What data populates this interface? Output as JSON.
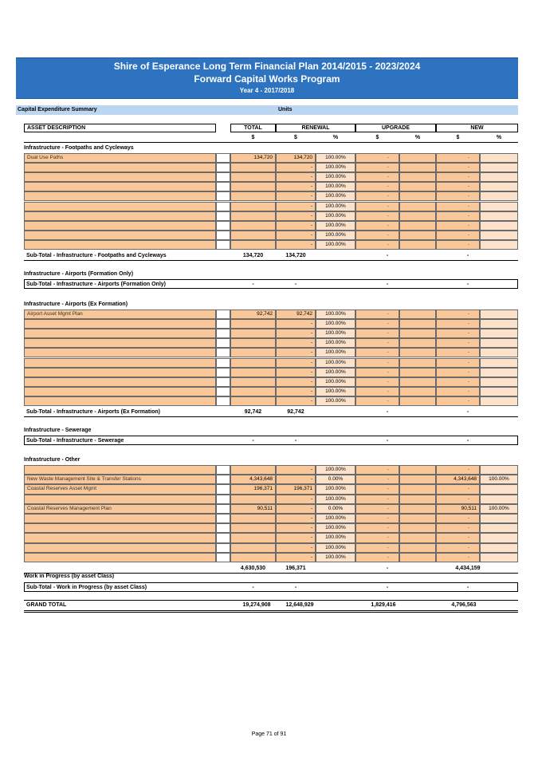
{
  "banner": {
    "title": "Shire of Esperance Long Term Financial Plan 2014/2015 - 2023/2024",
    "subtitle": "Forward Capital Works Program",
    "year": "Year 4 - 2017/2018"
  },
  "summary_bar": {
    "label": "Capital Expenditure Summary",
    "units": "Units"
  },
  "header": {
    "asset_description": "ASSET DESCRIPTION",
    "total": "TOTAL",
    "renewal": "RENEWAL",
    "upgrade": "UPGRADE",
    "new": "NEW",
    "dollar": "$",
    "percent": "%"
  },
  "sections": {
    "footpaths": {
      "title": "Infrastructure - Footpaths and Cycleways",
      "rows": [
        {
          "desc": "Dual Use Paths",
          "total": "134,720",
          "renewal": "134,720",
          "pct": "100.00%",
          "upgrade": "-",
          "new": "-",
          "new_pct": ""
        },
        {
          "desc": "",
          "total": "",
          "renewal": "-",
          "pct": "100.00%",
          "upgrade": "-",
          "new": "-",
          "new_pct": ""
        },
        {
          "desc": "",
          "total": "",
          "renewal": "-",
          "pct": "100.00%",
          "upgrade": "-",
          "new": "-",
          "new_pct": ""
        },
        {
          "desc": "",
          "total": "",
          "renewal": "-",
          "pct": "100.00%",
          "upgrade": "-",
          "new": "-",
          "new_pct": ""
        },
        {
          "desc": "",
          "total": "",
          "renewal": "-",
          "pct": "100.00%",
          "upgrade": "-",
          "new": "-",
          "new_pct": ""
        },
        {
          "desc": "",
          "total": "",
          "renewal": "-",
          "pct": "100.00%",
          "upgrade": "-",
          "new": "-",
          "new_pct": ""
        },
        {
          "desc": "",
          "total": "",
          "renewal": "-",
          "pct": "100.00%",
          "upgrade": "-",
          "new": "-",
          "new_pct": ""
        },
        {
          "desc": "",
          "total": "",
          "renewal": "-",
          "pct": "100.00%",
          "upgrade": "-",
          "new": "-",
          "new_pct": ""
        },
        {
          "desc": "",
          "total": "",
          "renewal": "-",
          "pct": "100.00%",
          "upgrade": "-",
          "new": "-",
          "new_pct": ""
        },
        {
          "desc": "",
          "total": "",
          "renewal": "-",
          "pct": "100.00%",
          "upgrade": "-",
          "new": "-",
          "new_pct": ""
        }
      ],
      "subtotal": {
        "label": "Sub-Total - Infrastructure - Footpaths and Cycleways",
        "total": "134,720",
        "renewal": "134,720",
        "upgrade": "-",
        "new": "-"
      }
    },
    "airports_formation": {
      "title": "Infrastructure - Airports (Formation Only)",
      "subtotal": {
        "label": "Sub-Total - Infrastructure - Airports (Formation Only)",
        "total": "-",
        "renewal": "-",
        "upgrade": "-",
        "new": "-"
      }
    },
    "airports_ex": {
      "title": "Infrastructure - Airports (Ex Formation)",
      "rows": [
        {
          "desc": "Airport Asset Mgmt Plan",
          "total": "92,742",
          "renewal": "92,742",
          "pct": "100.00%",
          "upgrade": "-",
          "new": "-",
          "new_pct": ""
        },
        {
          "desc": "",
          "total": "",
          "renewal": "-",
          "pct": "100.00%",
          "upgrade": "-",
          "new": "-",
          "new_pct": ""
        },
        {
          "desc": "",
          "total": "",
          "renewal": "-",
          "pct": "100.00%",
          "upgrade": "-",
          "new": "-",
          "new_pct": ""
        },
        {
          "desc": "",
          "total": "",
          "renewal": "-",
          "pct": "100.00%",
          "upgrade": "-",
          "new": "-",
          "new_pct": ""
        },
        {
          "desc": "",
          "total": "",
          "renewal": "-",
          "pct": "100.00%",
          "upgrade": "-",
          "new": "-",
          "new_pct": ""
        },
        {
          "desc": "",
          "total": "",
          "renewal": "-",
          "pct": "100.00%",
          "upgrade": "-",
          "new": "-",
          "new_pct": ""
        },
        {
          "desc": "",
          "total": "",
          "renewal": "-",
          "pct": "100.00%",
          "upgrade": "-",
          "new": "-",
          "new_pct": ""
        },
        {
          "desc": "",
          "total": "",
          "renewal": "-",
          "pct": "100.00%",
          "upgrade": "-",
          "new": "-",
          "new_pct": ""
        },
        {
          "desc": "",
          "total": "",
          "renewal": "-",
          "pct": "100.00%",
          "upgrade": "-",
          "new": "-",
          "new_pct": ""
        },
        {
          "desc": "",
          "total": "",
          "renewal": "-",
          "pct": "100.00%",
          "upgrade": "-",
          "new": "-",
          "new_pct": ""
        }
      ],
      "subtotal": {
        "label": "Sub-Total - Infrastructure - Airports (Ex Formation)",
        "total": "92,742",
        "renewal": "92,742",
        "upgrade": "-",
        "new": "-"
      }
    },
    "sewerage": {
      "title": "Infrastructure - Sewerage",
      "subtotal": {
        "label": "Sub-Total - Infrastructure - Sewerage",
        "total": "-",
        "renewal": "-",
        "upgrade": "-",
        "new": "-"
      }
    },
    "other": {
      "title": "Infrastructure - Other",
      "rows": [
        {
          "desc": "",
          "total": "",
          "renewal": "-",
          "pct": "100.00%",
          "upgrade": "-",
          "new": "-",
          "new_pct": ""
        },
        {
          "desc": "New Waste Management Site & Transfer Stations",
          "total": "4,343,648",
          "renewal": "-",
          "pct": "0.00%",
          "upgrade": "-",
          "new": "4,343,648",
          "new_pct": "100.00%"
        },
        {
          "desc": "Coastal Reserves Asset Mgmt",
          "total": "196,371",
          "renewal": "196,371",
          "pct": "100.00%",
          "upgrade": "-",
          "new": "-",
          "new_pct": ""
        },
        {
          "desc": "",
          "total": "",
          "renewal": "-",
          "pct": "100.00%",
          "upgrade": "-",
          "new": "-",
          "new_pct": ""
        },
        {
          "desc": "Coastal Reserves Management Plan",
          "total": "90,511",
          "renewal": "-",
          "pct": "0.00%",
          "upgrade": "-",
          "new": "90,511",
          "new_pct": "100.00%"
        },
        {
          "desc": "",
          "total": "",
          "renewal": "-",
          "pct": "100.00%",
          "upgrade": "-",
          "new": "-",
          "new_pct": ""
        },
        {
          "desc": "",
          "total": "",
          "renewal": "-",
          "pct": "100.00%",
          "upgrade": "-",
          "new": "-",
          "new_pct": ""
        },
        {
          "desc": "",
          "total": "",
          "renewal": "-",
          "pct": "100.00%",
          "upgrade": "-",
          "new": "-",
          "new_pct": ""
        },
        {
          "desc": "",
          "total": "",
          "renewal": "-",
          "pct": "100.00%",
          "upgrade": "-",
          "new": "-",
          "new_pct": ""
        },
        {
          "desc": "",
          "total": "",
          "renewal": "-",
          "pct": "100.00%",
          "upgrade": "-",
          "new": "-",
          "new_pct": ""
        }
      ],
      "subtotal": {
        "label": "",
        "total": "4,630,530",
        "renewal": "196,371",
        "upgrade": "-",
        "new": "4,434,159"
      }
    },
    "wip": {
      "title": "Work in Progress (by asset Class)",
      "subtotal": {
        "label": "Sub-Total - Work in Progress (by asset Class)",
        "total": "-",
        "renewal": "-",
        "upgrade": "-",
        "new": "-"
      }
    }
  },
  "grand_total": {
    "label": "GRAND TOTAL",
    "total": "19,274,908",
    "renewal": "12,648,929",
    "upgrade": "1,829,416",
    "new": "4,796,563"
  },
  "footer": {
    "page": "Page 71 of 91"
  },
  "colors": {
    "banner": "#2e73c0",
    "summary_bar": "#bcd6f2",
    "cell_fill": "#fac898",
    "pct_fill": "#fce2cb"
  }
}
